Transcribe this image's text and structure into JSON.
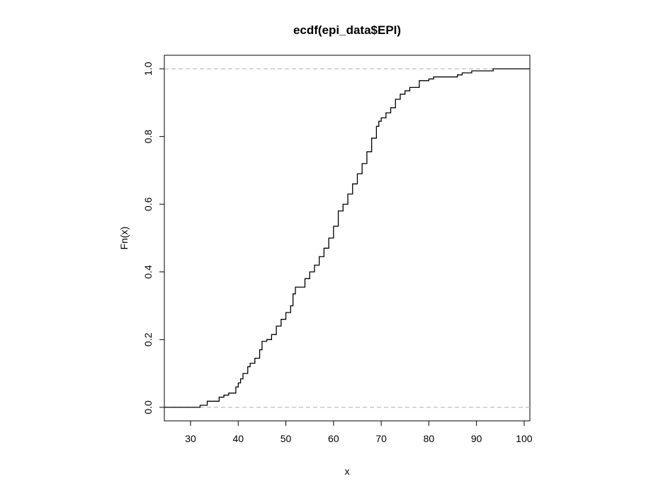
{
  "chart_data": {
    "type": "line",
    "title": "ecdf(epi_data$EPI)",
    "xlabel": "x",
    "ylabel": "Fn(x)",
    "xlim": [
      24.5,
      101.2
    ],
    "ylim": [
      -0.04,
      1.04
    ],
    "x_ticks": [
      "30",
      "40",
      "50",
      "60",
      "70",
      "80",
      "90",
      "100"
    ],
    "y_ticks": [
      "0.0",
      "0.2",
      "0.4",
      "0.6",
      "0.8",
      "1.0"
    ],
    "reference_lines": [
      0.0,
      1.0
    ],
    "series": [
      {
        "step": "post",
        "x": [
          24.5,
          32,
          33.5,
          36,
          37,
          38,
          39.5,
          40,
          40.5,
          41,
          42,
          42.5,
          43.5,
          44.5,
          45,
          46,
          47,
          48,
          49,
          50,
          51,
          51.5,
          52,
          54,
          55,
          56,
          57,
          58,
          59,
          60,
          61,
          62,
          63,
          64,
          65,
          66,
          67,
          68,
          69,
          69.5,
          70,
          71,
          72,
          73,
          74,
          75,
          76,
          78,
          80,
          81,
          86,
          87,
          89,
          93.5,
          101.2
        ],
        "y": [
          0,
          0.006,
          0.018,
          0.03,
          0.036,
          0.042,
          0.06,
          0.072,
          0.084,
          0.1,
          0.12,
          0.13,
          0.145,
          0.17,
          0.195,
          0.2,
          0.215,
          0.24,
          0.26,
          0.28,
          0.3,
          0.335,
          0.355,
          0.38,
          0.4,
          0.42,
          0.445,
          0.47,
          0.5,
          0.535,
          0.58,
          0.6,
          0.63,
          0.66,
          0.69,
          0.72,
          0.755,
          0.795,
          0.83,
          0.845,
          0.855,
          0.87,
          0.885,
          0.91,
          0.925,
          0.935,
          0.945,
          0.965,
          0.97,
          0.976,
          0.982,
          0.988,
          0.994,
          1.0,
          1.0
        ]
      }
    ]
  }
}
